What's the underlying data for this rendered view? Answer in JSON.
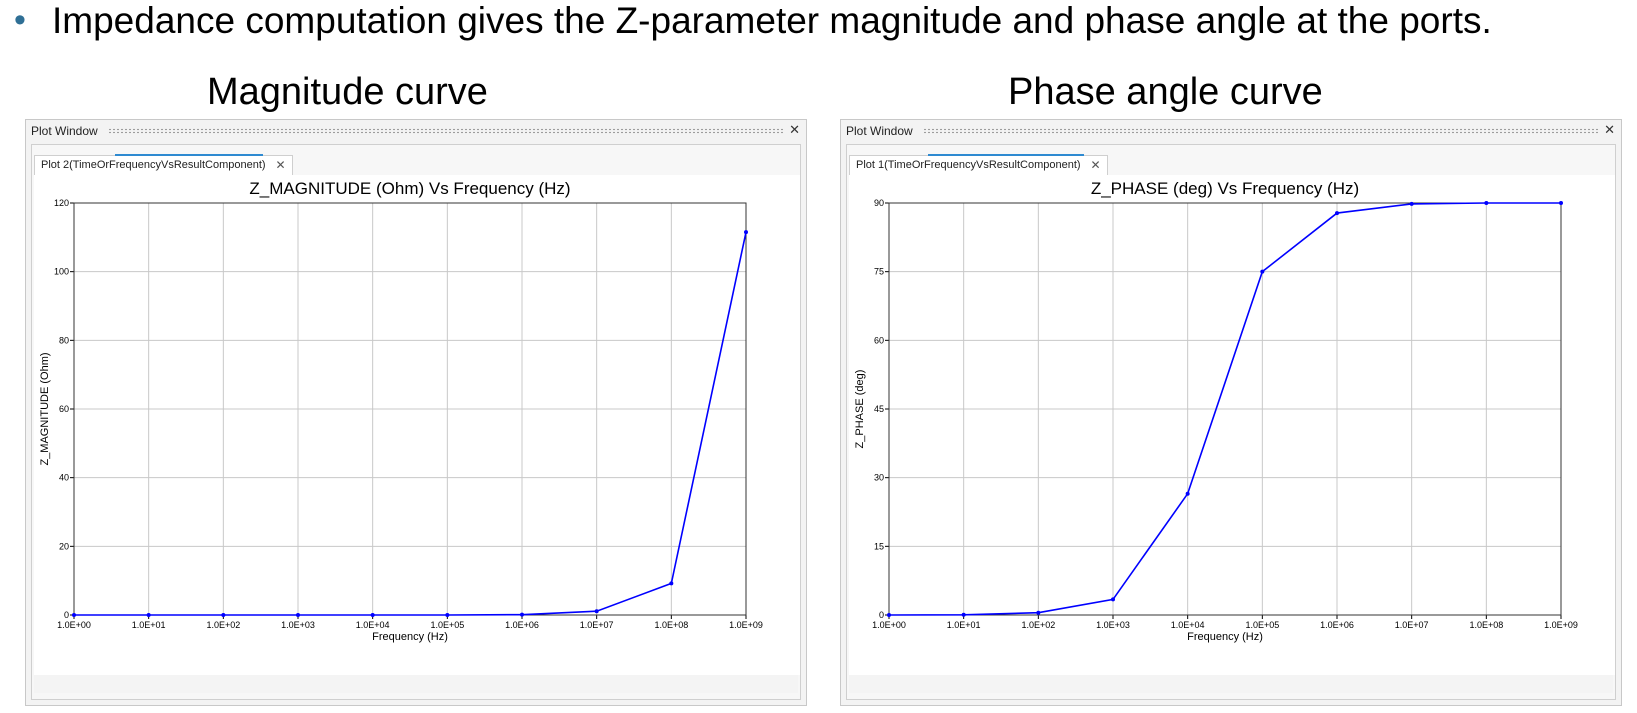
{
  "header": {
    "bullet_text": "Impedance computation gives the Z-parameter magnitude and phase angle at the ports.",
    "caption_left": "Magnitude curve",
    "caption_right": "Phase angle curve"
  },
  "windows": [
    {
      "title": "Plot Window",
      "tab_label": "Plot 2(TimeOrFrequencyVsResultComponent)"
    },
    {
      "title": "Plot Window",
      "tab_label": "Plot 1(TimeOrFrequencyVsResultComponent)"
    }
  ],
  "colors": {
    "line": "#0000ff",
    "grid": "#c8c8c8",
    "accent": "#2e8ad1"
  },
  "chart_data": [
    {
      "type": "line",
      "title": "Z_MAGNITUDE (Ohm) Vs Frequency (Hz)",
      "xlabel": "Frequency (Hz)",
      "ylabel": "Z_MAGNITUDE (Ohm)",
      "x_scale": "log",
      "xlim": [
        1,
        1000000000
      ],
      "ylim": [
        0,
        120
      ],
      "grid": true,
      "x_tick_labels": [
        "1.0E+00",
        "1.0E+01",
        "1.0E+02",
        "1.0E+03",
        "1.0E+04",
        "1.0E+05",
        "1.0E+06",
        "1.0E+07",
        "1.0E+08",
        "1.0E+09"
      ],
      "y_ticks": [
        0,
        20,
        40,
        60,
        80,
        100,
        120
      ],
      "x": [
        1,
        10,
        100,
        1000,
        10000,
        100000,
        1000000,
        10000000,
        100000000,
        1000000000
      ],
      "values": [
        0.0,
        0.0,
        0.0,
        0.0,
        0.0,
        0.0,
        0.1,
        1.1,
        9.2,
        111.5
      ]
    },
    {
      "type": "line",
      "title": "Z_PHASE (deg) Vs Frequency (Hz)",
      "xlabel": "Frequency (Hz)",
      "ylabel": "Z_PHASE (deg)",
      "x_scale": "log",
      "xlim": [
        1,
        1000000000
      ],
      "ylim": [
        0,
        90
      ],
      "grid": true,
      "x_tick_labels": [
        "1.0E+00",
        "1.0E+01",
        "1.0E+02",
        "1.0E+03",
        "1.0E+04",
        "1.0E+05",
        "1.0E+06",
        "1.0E+07",
        "1.0E+08",
        "1.0E+09"
      ],
      "y_ticks": [
        0,
        15,
        30,
        45,
        60,
        75,
        90
      ],
      "x": [
        1,
        10,
        100,
        1000,
        10000,
        100000,
        1000000,
        10000000,
        100000000,
        1000000000
      ],
      "values": [
        0.0,
        0.05,
        0.5,
        3.4,
        26.5,
        75.0,
        87.8,
        89.8,
        90.0,
        90.0
      ]
    }
  ]
}
